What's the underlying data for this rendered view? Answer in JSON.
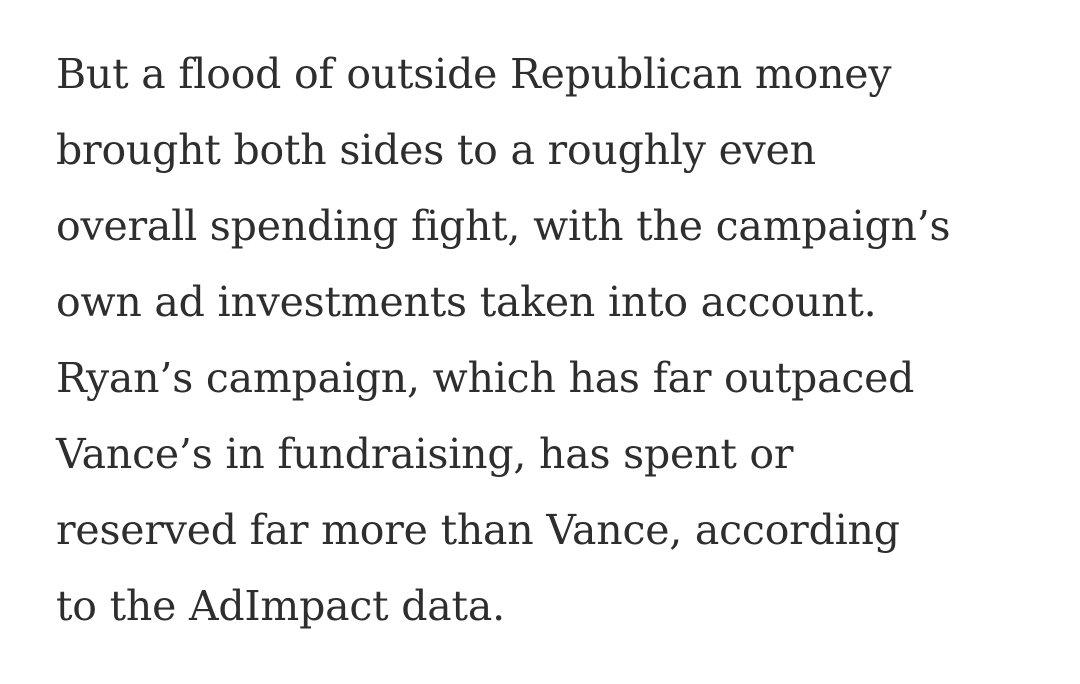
{
  "article": {
    "paragraph_lines": [
      "But a flood of outside Republican money",
      "brought both sides to a roughly even",
      "overall spending fight, with the campaign’s",
      "own ad investments taken into account.",
      "Ryan’s campaign, which has far outpaced",
      "Vance’s in fundraising, has spent or",
      "reserved far more than Vance, according",
      "to the AdImpact data."
    ]
  },
  "colors": {
    "text": "#2e2e2e",
    "background": "#ffffff"
  }
}
